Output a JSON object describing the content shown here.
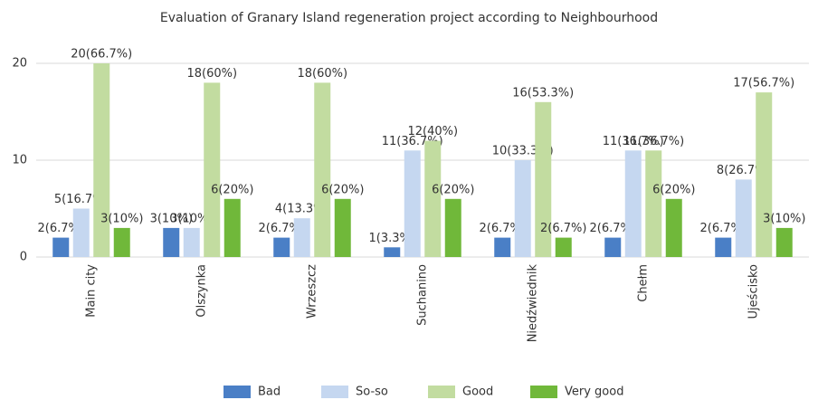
{
  "chart_data": {
    "type": "bar",
    "title": "Evaluation of Granary Island regeneration project according to Neighbourhood",
    "categories": [
      "Main city",
      "Olszynka",
      "Wrzeszcz",
      "Suchanino",
      "Niedźwiednik",
      "Chełm",
      "Ujeścisko"
    ],
    "series": [
      {
        "name": "Bad",
        "color": "#4a7fc6",
        "values": [
          2,
          3,
          2,
          1,
          2,
          2,
          2
        ],
        "value_labels": [
          "2(6.7%)",
          "3(10%)",
          "2(6.7%)",
          "1(3.3%)",
          "2(6.7%)",
          "2(6.7%)",
          "2(6.7%)"
        ]
      },
      {
        "name": "So-so",
        "color": "#c5d7f0",
        "values": [
          5,
          3,
          4,
          11,
          10,
          11,
          8
        ],
        "value_labels": [
          "5(16.7%)",
          "3(10%)",
          "4(13.3%)",
          "11(36.7%)",
          "10(33.3%)",
          "11(36.7%)",
          "8(26.7%)"
        ]
      },
      {
        "name": "Good",
        "color": "#c2dca0",
        "values": [
          20,
          18,
          18,
          12,
          16,
          11,
          17
        ],
        "value_labels": [
          "20(66.7%)",
          "18(60%)",
          "18(60%)",
          "12(40%)",
          "16(53.3%)",
          "11(36.7%)",
          "17(56.7%)"
        ]
      },
      {
        "name": "Very good",
        "color": "#70b83a",
        "values": [
          3,
          6,
          6,
          6,
          2,
          6,
          3
        ],
        "value_labels": [
          "3(10%)",
          "6(20%)",
          "6(20%)",
          "6(20%)",
          "2(6.7%)",
          "6(20%)",
          "3(10%)"
        ]
      }
    ],
    "ylim": [
      0,
      20
    ],
    "yticks": [
      0,
      10,
      20
    ],
    "grid": true,
    "legend": "bottom"
  }
}
